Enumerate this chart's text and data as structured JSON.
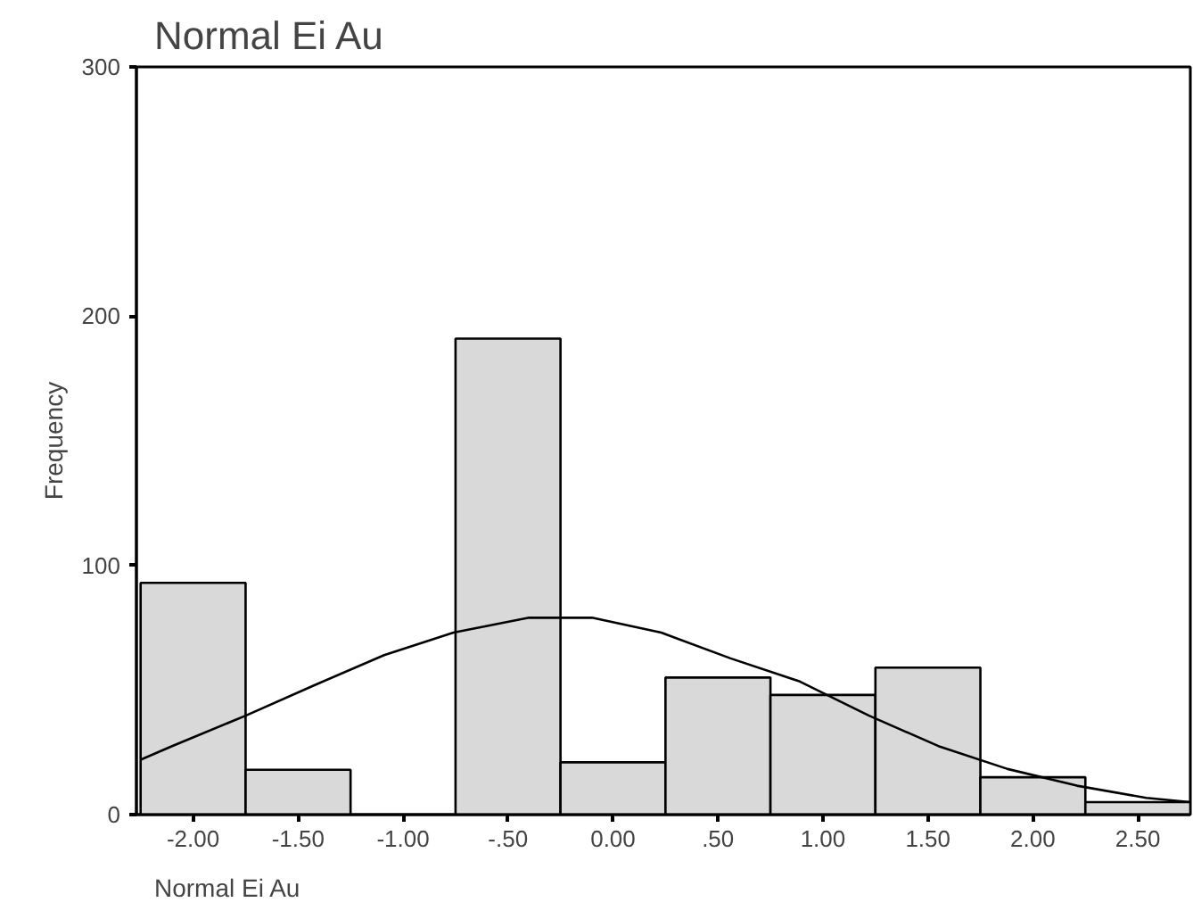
{
  "chart_data": {
    "type": "histogram",
    "title": "Normal Ei Au",
    "xlabel": "Normal Ei Au",
    "ylabel": "Frequency",
    "bins": [
      -2.25,
      -1.75,
      -1.25,
      -0.75,
      -0.25,
      0.25,
      0.75,
      1.25,
      1.75,
      2.25,
      2.75
    ],
    "values": [
      93,
      18,
      0,
      191,
      21,
      55,
      48,
      59,
      15,
      5
    ],
    "color": "#d9d9d9",
    "series": [
      {
        "type": "line",
        "color": "#000000",
        "x": [
          -2.25,
          -2.1,
          -1.75,
          -1.42,
          -1.09,
          -0.76,
          -0.4,
          -0.1,
          0.23,
          0.56,
          0.89,
          1.22,
          1.55,
          1.88,
          2.21,
          2.54,
          2.75
        ],
        "values": [
          22,
          27.5,
          39.7,
          52,
          64,
          73,
          79,
          79,
          73,
          62.7,
          53.4,
          39.7,
          27.5,
          18.3,
          11.6,
          6.7,
          5
        ]
      }
    ],
    "xlim": [
      -2.27,
      2.75
    ],
    "ylim": [
      0,
      300
    ],
    "xticks": [
      {
        "value": -2,
        "label": "-2.00"
      },
      {
        "value": -1.5,
        "label": "-1.50"
      },
      {
        "value": -1,
        "label": "-1.00"
      },
      {
        "value": -0.5,
        "label": "-.50"
      },
      {
        "value": 0,
        "label": "0.00"
      },
      {
        "value": 0.5,
        "label": ".50"
      },
      {
        "value": 1,
        "label": "1.00"
      },
      {
        "value": 1.5,
        "label": "1.50"
      },
      {
        "value": 2,
        "label": "2.00"
      },
      {
        "value": 2.5,
        "label": "2.50"
      }
    ],
    "yticks": [
      0,
      100,
      200,
      300
    ],
    "grid": false,
    "marker": "none",
    "line_style": "solid"
  }
}
